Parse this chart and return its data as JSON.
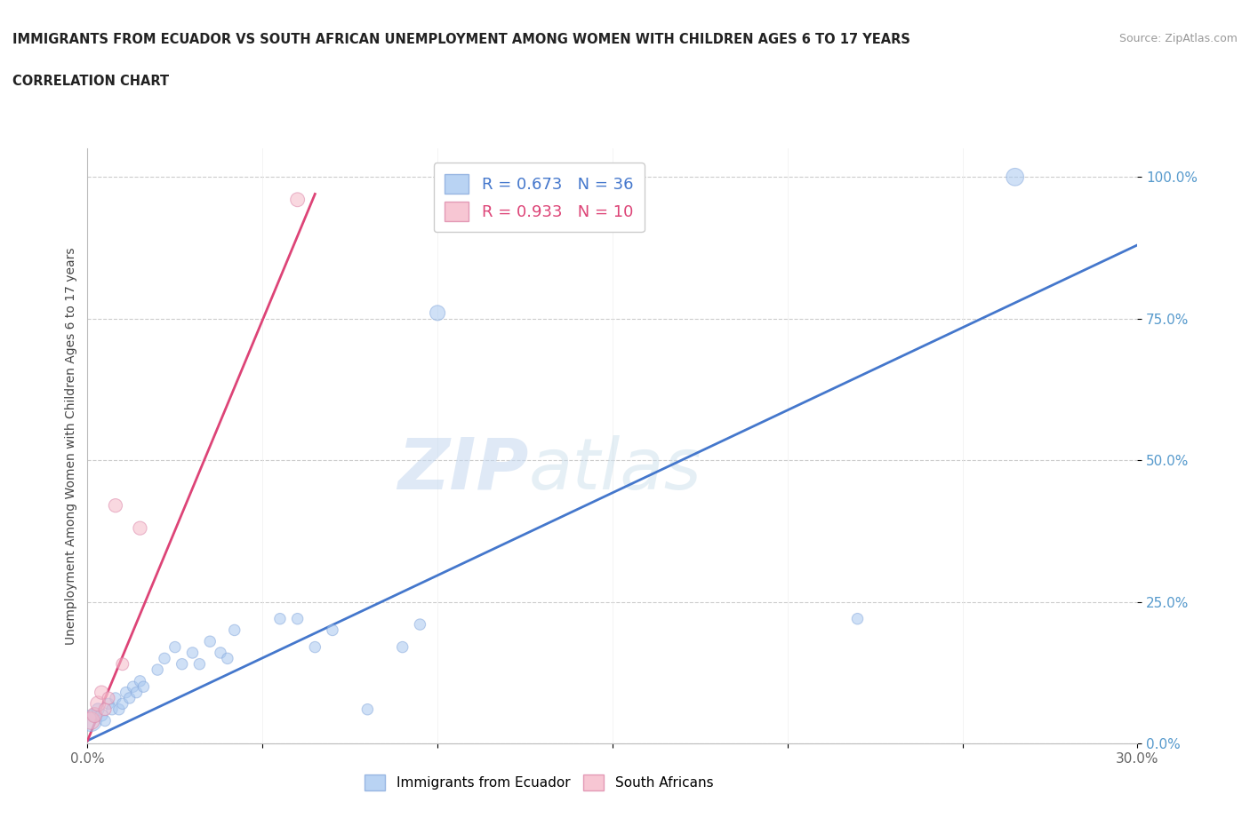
{
  "title_line1": "IMMIGRANTS FROM ECUADOR VS SOUTH AFRICAN UNEMPLOYMENT AMONG WOMEN WITH CHILDREN AGES 6 TO 17 YEARS",
  "title_line2": "CORRELATION CHART",
  "source_text": "Source: ZipAtlas.com",
  "ylabel": "Unemployment Among Women with Children Ages 6 to 17 years",
  "xlim": [
    0.0,
    0.3
  ],
  "ylim": [
    0.0,
    1.05
  ],
  "xticks": [
    0.0,
    0.05,
    0.1,
    0.15,
    0.2,
    0.25,
    0.3
  ],
  "xticklabels": [
    "0.0%",
    "",
    "",
    "",
    "",
    "",
    "30.0%"
  ],
  "yticks": [
    0.0,
    0.25,
    0.5,
    0.75,
    1.0
  ],
  "yticklabels": [
    "0.0%",
    "25.0%",
    "50.0%",
    "75.0%",
    "100.0%"
  ],
  "watermark_zip": "ZIP",
  "watermark_atlas": "atlas",
  "legend_r1": "R = 0.673   N = 36",
  "legend_r2": "R = 0.933   N = 10",
  "blue_color": "#a8c8f0",
  "pink_color": "#f5b8c8",
  "blue_line_color": "#4477cc",
  "pink_line_color": "#dd4477",
  "blue_scatter": {
    "x": [
      0.001,
      0.002,
      0.003,
      0.004,
      0.005,
      0.006,
      0.007,
      0.008,
      0.009,
      0.01,
      0.011,
      0.012,
      0.013,
      0.014,
      0.015,
      0.016,
      0.02,
      0.022,
      0.025,
      0.027,
      0.03,
      0.032,
      0.035,
      0.038,
      0.04,
      0.042,
      0.055,
      0.06,
      0.065,
      0.07,
      0.08,
      0.09,
      0.095,
      0.1,
      0.22,
      0.265
    ],
    "y": [
      0.04,
      0.05,
      0.06,
      0.05,
      0.04,
      0.07,
      0.06,
      0.08,
      0.06,
      0.07,
      0.09,
      0.08,
      0.1,
      0.09,
      0.11,
      0.1,
      0.13,
      0.15,
      0.17,
      0.14,
      0.16,
      0.14,
      0.18,
      0.16,
      0.15,
      0.2,
      0.22,
      0.22,
      0.17,
      0.2,
      0.06,
      0.17,
      0.21,
      0.76,
      0.22,
      1.0
    ],
    "sizes": [
      300,
      120,
      100,
      100,
      80,
      80,
      80,
      80,
      80,
      80,
      80,
      80,
      80,
      80,
      80,
      80,
      80,
      80,
      80,
      80,
      80,
      80,
      80,
      80,
      80,
      80,
      80,
      80,
      80,
      80,
      80,
      80,
      80,
      150,
      80,
      200
    ]
  },
  "pink_scatter": {
    "x": [
      0.001,
      0.002,
      0.003,
      0.004,
      0.005,
      0.006,
      0.008,
      0.01,
      0.015,
      0.06
    ],
    "y": [
      0.04,
      0.05,
      0.07,
      0.09,
      0.06,
      0.08,
      0.42,
      0.14,
      0.38,
      0.96
    ],
    "sizes": [
      200,
      150,
      150,
      120,
      100,
      100,
      120,
      100,
      120,
      130
    ]
  },
  "blue_trend_x": [
    0.0,
    0.3
  ],
  "blue_trend_y": [
    0.005,
    0.88
  ],
  "pink_trend_x": [
    0.0,
    0.065
  ],
  "pink_trend_y": [
    0.005,
    0.97
  ]
}
